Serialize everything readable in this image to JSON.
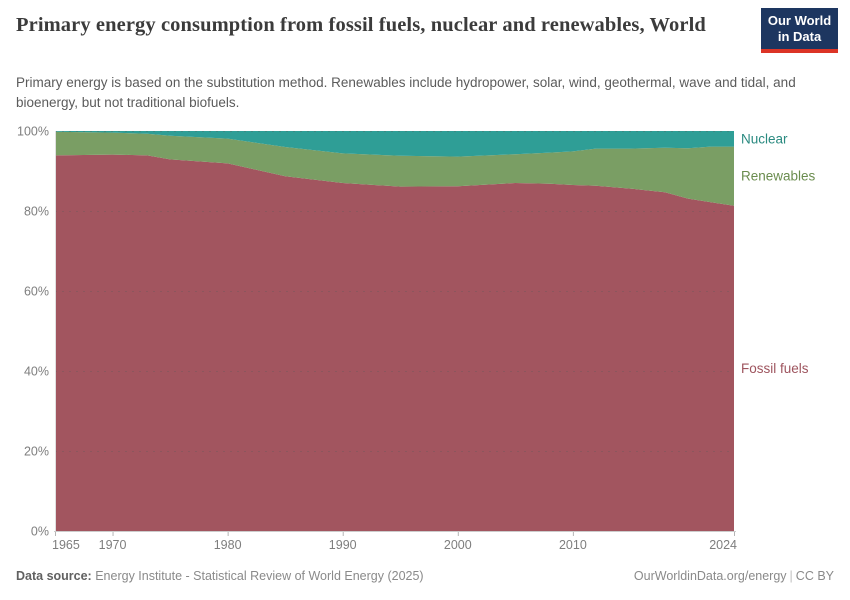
{
  "logo": {
    "line1": "Our World",
    "line2": "in Data",
    "bg_color": "#1d3660",
    "accent_color": "#dc3426"
  },
  "header": {
    "title": "Primary energy consumption from fossil fuels, nuclear and renewables, World",
    "subtitle": "Primary energy is based on the substitution method. Renewables include hydropower, solar, wind, geothermal, wave and tidal, and bioenergy, but not traditional biofuels."
  },
  "footer": {
    "source_label": "Data source:",
    "source_text": " Energy Institute - Statistical Review of World Energy (2025)",
    "credit": "OurWorldinData.org/energy",
    "divider": "|",
    "license": "CC BY"
  },
  "chart_data": {
    "type": "area",
    "stacked": true,
    "percent_stacked": true,
    "title": "Primary energy consumption from fossil fuels, nuclear and renewables, World",
    "xlabel": "",
    "ylabel": "",
    "unit": "%",
    "xlim": [
      1965,
      2024
    ],
    "ylim": [
      0,
      100
    ],
    "grid": true,
    "legend_position": "right",
    "x": [
      1965,
      1970,
      1973,
      1975,
      1980,
      1985,
      1990,
      1995,
      2000,
      2005,
      2008,
      2010,
      2012,
      2015,
      2018,
      2020,
      2022,
      2024
    ],
    "series": [
      {
        "name": "Fossil fuels",
        "color": "#a2555f",
        "label_color": "#9e545e",
        "values": [
          93.9,
          94.1,
          93.9,
          92.9,
          91.9,
          88.7,
          87.0,
          86.1,
          86.2,
          87.0,
          86.8,
          86.5,
          86.3,
          85.6,
          84.7,
          83.1,
          82.2,
          81.3
        ]
      },
      {
        "name": "Renewables",
        "color": "#7a9e64",
        "label_color": "#6a8c4e",
        "values": [
          5.9,
          5.5,
          5.4,
          5.9,
          6.2,
          7.3,
          7.4,
          7.7,
          7.4,
          7.2,
          7.8,
          8.4,
          9.3,
          10.0,
          11.1,
          12.6,
          13.9,
          14.8
        ]
      },
      {
        "name": "Nuclear",
        "color": "#2f9e96",
        "label_color": "#2a8a80",
        "values": [
          0.2,
          0.4,
          0.7,
          1.2,
          1.9,
          4.0,
          5.6,
          6.2,
          6.4,
          5.8,
          5.4,
          5.1,
          4.4,
          4.4,
          4.2,
          4.3,
          3.9,
          3.9
        ]
      }
    ],
    "yticks": [
      0,
      20,
      40,
      60,
      80,
      100
    ],
    "ytick_labels": [
      "0%",
      "20%",
      "40%",
      "60%",
      "80%",
      "100%"
    ],
    "xticks": [
      1965,
      1970,
      1980,
      1990,
      2000,
      2010,
      2024
    ],
    "xtick_labels": [
      "1965",
      "1970",
      "1980",
      "1990",
      "2000",
      "2010",
      "2024"
    ]
  }
}
